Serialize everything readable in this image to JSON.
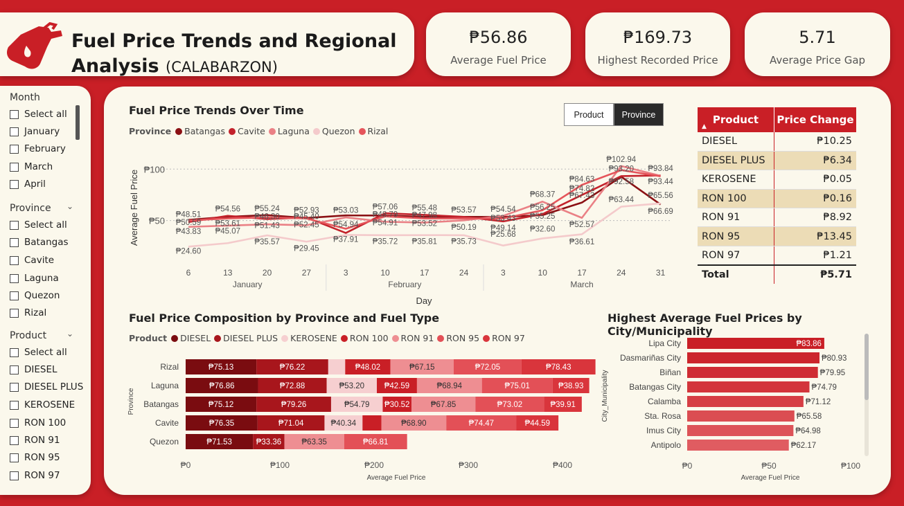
{
  "header": {
    "title_line1": "Fuel Price Trends and Regional",
    "title_line2": "Analysis",
    "title_region": "(CALABARZON)"
  },
  "kpis": [
    {
      "value": "₱56.86",
      "label": "Average Fuel Price"
    },
    {
      "value": "₱169.73",
      "label": "Highest Recorded Price"
    },
    {
      "value": "5.71",
      "label": "Average Price Gap"
    }
  ],
  "slicers": {
    "month": {
      "title": "Month",
      "items": [
        "Select all",
        "January",
        "February",
        "March",
        "April"
      ]
    },
    "province": {
      "title": "Province",
      "items": [
        "Select all",
        "Batangas",
        "Cavite",
        "Laguna",
        "Quezon",
        "Rizal"
      ]
    },
    "product": {
      "title": "Product",
      "items": [
        "Select all",
        "DIESEL",
        "DIESEL PLUS",
        "KEROSENE",
        "RON 100",
        "RON 91",
        "RON 95",
        "RON 97"
      ]
    }
  },
  "toggle": {
    "product": "Product",
    "province": "Province"
  },
  "price_change_table": {
    "headers": [
      "Product",
      "Price Change"
    ],
    "rows": [
      {
        "product": "DIESEL",
        "change": "₱10.25"
      },
      {
        "product": "DIESEL PLUS",
        "change": "₱6.34"
      },
      {
        "product": "KEROSENE",
        "change": "₱0.05"
      },
      {
        "product": "RON 100",
        "change": "₱0.16"
      },
      {
        "product": "RON 91",
        "change": "₱8.92"
      },
      {
        "product": "RON 95",
        "change": "₱13.45"
      },
      {
        "product": "RON 97",
        "change": "₱1.21"
      }
    ],
    "total": {
      "label": "Total",
      "value": "₱5.71"
    }
  },
  "colors": {
    "brand_red": "#c91f26",
    "batangas": "#8b1014",
    "cavite": "#c3222b",
    "laguna": "#ea8085",
    "quezon": "#f4cacb",
    "rizal": "#e5555b"
  },
  "chart_data": [
    {
      "type": "line",
      "title": "Fuel Price Trends Over Time",
      "xlabel": "Day",
      "ylabel": "Average Fuel Price",
      "legend_title": "Province",
      "x": [
        "6",
        "13",
        "20",
        "27",
        "3",
        "10",
        "17",
        "24",
        "3",
        "10",
        "17",
        "24",
        "31"
      ],
      "x_groups": [
        {
          "label": "January",
          "span": 4
        },
        {
          "label": "February",
          "span": 4
        },
        {
          "label": "March",
          "span": 5
        }
      ],
      "y_ticks": [
        "₱50",
        "₱100"
      ],
      "ylim": [
        10,
        115
      ],
      "series": [
        {
          "name": "Batangas",
          "color": "#8b1014",
          "values": [
            50.59,
            53.61,
            55.24,
            52.45,
            54.94,
            54.91,
            53.52,
            53.57,
            53.43,
            55.25,
            67.43,
            92.58,
            65.56
          ]
        },
        {
          "name": "Cavite",
          "color": "#c3222b",
          "values": [
            48.51,
            54.56,
            51.43,
            52.93,
            37.91,
            57.06,
            55.48,
            53.57,
            49.14,
            56.25,
            74.82,
            93.2,
            93.84
          ]
        },
        {
          "name": "Laguna",
          "color": "#ea8085",
          "values": [
            43.83,
            45.07,
            46.3,
            45.4,
            53.03,
            48.79,
            47.98,
            50.19,
            54.54,
            68.37,
            52.57,
            102.94,
            93.44
          ]
        },
        {
          "name": "Quezon",
          "color": "#f4cacb",
          "values": [
            24.6,
            28.0,
            35.57,
            29.45,
            36.0,
            35.72,
            35.81,
            35.73,
            25.68,
            32.6,
            36.61,
            63.44,
            66.69
          ]
        },
        {
          "name": "Rizal",
          "color": "#e5555b",
          "values": [
            50.0,
            52.0,
            53.0,
            52.0,
            42.0,
            54.0,
            52.0,
            52.0,
            52.0,
            60.0,
            84.63,
            99.0,
            93.0
          ]
        }
      ],
      "data_labels": [
        {
          "text": "₱48.51",
          "i": 0,
          "v": 56
        },
        {
          "text": "₱50.59",
          "i": 0,
          "v": 48.2
        },
        {
          "text": "₱43.83",
          "i": 0,
          "v": 39.5
        },
        {
          "text": "₱24.60",
          "i": 0,
          "v": 20.5
        },
        {
          "text": "₱54.56",
          "i": 1,
          "v": 61.5
        },
        {
          "text": "₱53.61",
          "i": 1,
          "v": 47.5
        },
        {
          "text": "₱45.07",
          "i": 1,
          "v": 40
        },
        {
          "text": "₱55.24",
          "i": 2,
          "v": 61.8
        },
        {
          "text": "₱46.30",
          "i": 2,
          "v": 54
        },
        {
          "text": "₱51.43",
          "i": 2,
          "v": 45.5
        },
        {
          "text": "₱35.57",
          "i": 2,
          "v": 29.5
        },
        {
          "text": "₱52.93",
          "i": 3,
          "v": 60
        },
        {
          "text": "₱45.40",
          "i": 3,
          "v": 54
        },
        {
          "text": "₱52.45",
          "i": 3,
          "v": 46
        },
        {
          "text": "₱29.45",
          "i": 3,
          "v": 23
        },
        {
          "text": "₱53.03",
          "i": 4,
          "v": 60
        },
        {
          "text": "₱54.94",
          "i": 4,
          "v": 46.5
        },
        {
          "text": "₱37.91",
          "i": 4,
          "v": 32
        },
        {
          "text": "₱57.06",
          "i": 5,
          "v": 63.5
        },
        {
          "text": "₱48.79",
          "i": 5,
          "v": 56
        },
        {
          "text": "₱54.91",
          "i": 5,
          "v": 48
        },
        {
          "text": "₱35.72",
          "i": 5,
          "v": 30
        },
        {
          "text": "₱55.48",
          "i": 6,
          "v": 62.5
        },
        {
          "text": "₱47.98",
          "i": 6,
          "v": 55.5
        },
        {
          "text": "₱53.52",
          "i": 6,
          "v": 47.5
        },
        {
          "text": "₱35.81",
          "i": 6,
          "v": 30
        },
        {
          "text": "₱53.57",
          "i": 7,
          "v": 60.5
        },
        {
          "text": "₱50.19",
          "i": 7,
          "v": 43.8
        },
        {
          "text": "₱35.73",
          "i": 7,
          "v": 30
        },
        {
          "text": "₱53.43",
          "i": 8,
          "v": 52.5
        },
        {
          "text": "₱54.54",
          "i": 8,
          "v": 61
        },
        {
          "text": "₱49.14",
          "i": 8,
          "v": 43
        },
        {
          "text": "₱25.68",
          "i": 8,
          "v": 37
        },
        {
          "text": "₱55.25",
          "i": 9,
          "v": 54.5
        },
        {
          "text": "₱68.37",
          "i": 9,
          "v": 75.5
        },
        {
          "text": "₱56.25",
          "i": 9,
          "v": 63.3
        },
        {
          "text": "₱32.60",
          "i": 9,
          "v": 42
        },
        {
          "text": "₱84.63",
          "i": 10,
          "v": 90.5
        },
        {
          "text": "₱74.82",
          "i": 10,
          "v": 81.5
        },
        {
          "text": "₱67.43",
          "i": 10,
          "v": 74.5
        },
        {
          "text": "₱52.57",
          "i": 10,
          "v": 46.5
        },
        {
          "text": "₱36.61",
          "i": 10,
          "v": 29.5
        },
        {
          "text": "₱102.94",
          "i": 11,
          "v": 109.5
        },
        {
          "text": "₱93.20",
          "i": 11,
          "v": 100.6
        },
        {
          "text": "₱92.58",
          "i": 11,
          "v": 88
        },
        {
          "text": "₱63.44",
          "i": 11,
          "v": 70.5
        },
        {
          "text": "₱93.84",
          "i": 12,
          "v": 101
        },
        {
          "text": "₱93.44",
          "i": 12,
          "v": 88
        },
        {
          "text": "₱65.56",
          "i": 12,
          "v": 74.5
        },
        {
          "text": "₱66.69",
          "i": 12,
          "v": 59
        }
      ]
    },
    {
      "type": "bar",
      "orientation": "horizontal",
      "stacked": true,
      "title": "Fuel Price Composition by Province and Fuel Type",
      "xlabel": "Average Fuel Price",
      "ylabel": "Province",
      "legend_title": "Product",
      "categories": [
        "Rizal",
        "Laguna",
        "Batangas",
        "Cavite",
        "Quezon"
      ],
      "x_ticks": [
        "₱0",
        "₱100",
        "₱200",
        "₱300",
        "₱400"
      ],
      "xlim": [
        0,
        440
      ],
      "series": [
        {
          "name": "DIESEL",
          "color": "#7a0c10",
          "values": [
            75.13,
            76.86,
            75.12,
            76.35,
            71.53
          ],
          "labels": [
            "₱75.13",
            "₱76.86",
            "₱75.12",
            "₱76.35",
            "₱71.53"
          ]
        },
        {
          "name": "DIESEL PLUS",
          "color": "#a8161c",
          "values": [
            76.22,
            72.88,
            79.26,
            71.04,
            33.36
          ],
          "labels": [
            "₱76.22",
            "₱72.88",
            "₱79.26",
            "₱71.04",
            "₱33.36"
          ]
        },
        {
          "name": "KEROSENE",
          "color": "#f6cfd0",
          "values": [
            18.0,
            53.2,
            54.79,
            40.34,
            0
          ],
          "labels": [
            "",
            "₱53.20",
            "₱54.79",
            "₱40.34",
            ""
          ]
        },
        {
          "name": "RON 100",
          "color": "#c91f26",
          "values": [
            48.02,
            42.59,
            30.52,
            20.0,
            0
          ],
          "labels": [
            "₱48.02",
            "₱42.59",
            "₱30.52",
            "",
            ""
          ]
        },
        {
          "name": "RON 91",
          "color": "#ee8e92",
          "values": [
            67.15,
            68.94,
            67.85,
            68.9,
            63.35
          ],
          "labels": [
            "₱67.15",
            "₱68.94",
            "₱67.85",
            "₱68.90",
            "₱63.35"
          ]
        },
        {
          "name": "RON 95",
          "color": "#e35057",
          "values": [
            72.05,
            75.01,
            73.02,
            74.47,
            66.81
          ],
          "labels": [
            "₱72.05",
            "₱75.01",
            "₱73.02",
            "₱74.47",
            "₱66.81"
          ]
        },
        {
          "name": "RON 97",
          "color": "#d9353c",
          "values": [
            78.43,
            38.93,
            39.91,
            44.59,
            0
          ],
          "labels": [
            "₱78.43",
            "₱38.93",
            "₱39.91",
            "₱44.59",
            ""
          ]
        }
      ]
    },
    {
      "type": "bar",
      "orientation": "horizontal",
      "title": "Highest Average Fuel Prices by City/Municipality",
      "xlabel": "Average Fuel Price",
      "ylabel": "City_Municipality",
      "categories": [
        "Lipa City",
        "Dasmariñas City",
        "Biñan",
        "Batangas City",
        "Calamba",
        "Sta. Rosa",
        "Imus City",
        "Antipolo"
      ],
      "values": [
        83.86,
        80.93,
        79.95,
        74.79,
        71.12,
        65.58,
        64.98,
        62.17
      ],
      "labels": [
        "₱83.86",
        "₱80.93",
        "₱79.95",
        "₱74.79",
        "₱71.12",
        "₱65.58",
        "₱64.98",
        "₱62.17"
      ],
      "x_ticks": [
        "₱0",
        "₱50",
        "₱100"
      ],
      "xlim": [
        0,
        100
      ],
      "colors": [
        "#c91f26",
        "#cc252c",
        "#cf2c33",
        "#d3353b",
        "#d63e44",
        "#db4d52",
        "#dd5358",
        "#e05c61"
      ]
    }
  ]
}
